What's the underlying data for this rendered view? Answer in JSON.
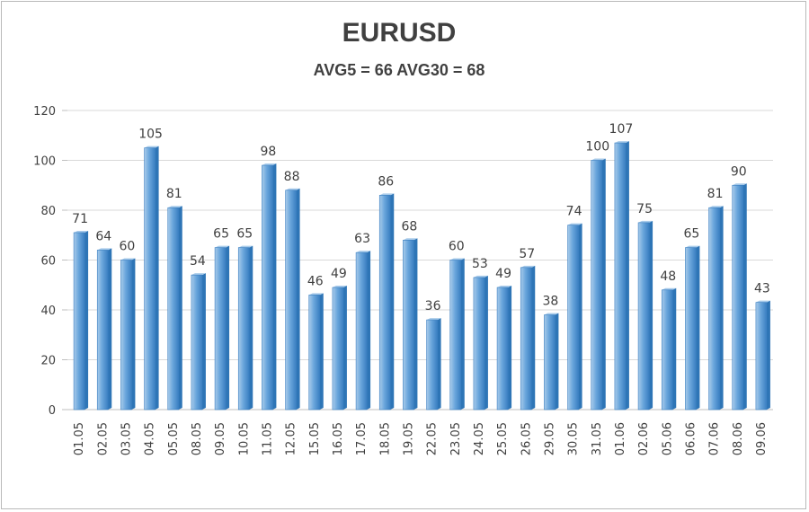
{
  "chart_data": {
    "type": "bar",
    "title": "EURUSD",
    "subtitle": "AVG5 = 66 AVG30 = 68",
    "categories": [
      "01.05",
      "02.05",
      "03.05",
      "04.05",
      "05.05",
      "08.05",
      "09.05",
      "10.05",
      "11.05",
      "12.05",
      "15.05",
      "16.05",
      "17.05",
      "18.05",
      "19.05",
      "22.05",
      "23.05",
      "24.05",
      "25.05",
      "26.05",
      "29.05",
      "30.05",
      "31.05",
      "01.06",
      "02.06",
      "05.06",
      "06.06",
      "07.06",
      "08.06",
      "09.06"
    ],
    "values": [
      71,
      64,
      60,
      105,
      81,
      54,
      65,
      65,
      98,
      88,
      46,
      49,
      63,
      86,
      68,
      36,
      60,
      53,
      49,
      57,
      38,
      74,
      100,
      107,
      75,
      48,
      65,
      81,
      90,
      43
    ],
    "ylim": [
      0,
      120
    ],
    "yticks": [
      "0",
      "20",
      "40",
      "60",
      "80",
      "100",
      "120"
    ],
    "xlabel": "",
    "ylabel": "",
    "grid": true,
    "colors": {
      "bar": "#5b9bd5",
      "bar_dark": "#2e75b6",
      "bar_light": "#a9cbea",
      "text": "#404040",
      "grid": "#d9d9d9"
    }
  }
}
